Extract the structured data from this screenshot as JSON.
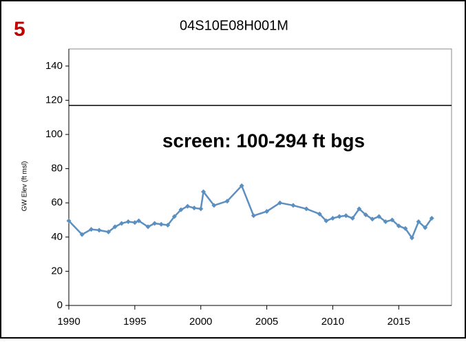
{
  "chart_data": {
    "type": "line",
    "panel_label": "5",
    "title": "04S10E08H001M",
    "ylabel": "GW Elev (ft msl)",
    "annotation": "screen: 100-294  ft bgs",
    "reference_line": 117,
    "x": [
      1990.0,
      1991.0,
      1991.7,
      1992.3,
      1993.0,
      1993.5,
      1994.0,
      1994.5,
      1995.0,
      1995.3,
      1996.0,
      1996.5,
      1997.0,
      1997.5,
      1998.0,
      1998.5,
      1999.0,
      1999.5,
      2000.0,
      2000.2,
      2001.0,
      2002.0,
      2003.1,
      2004.0,
      2005.0,
      2006.0,
      2007.0,
      2008.0,
      2009.0,
      2009.5,
      2010.0,
      2010.5,
      2011.0,
      2011.5,
      2012.0,
      2012.5,
      2013.0,
      2013.5,
      2014.0,
      2014.5,
      2015.0,
      2015.5,
      2016.0,
      2016.5,
      2017.0,
      2017.5
    ],
    "series": [
      {
        "name": "GW Elev",
        "color": "#5b8fc0",
        "values": [
          49.5,
          41.5,
          44.5,
          44,
          43,
          46,
          48,
          49,
          48.5,
          49.5,
          46,
          48,
          47.5,
          47,
          52,
          56,
          58,
          57,
          56.5,
          66.5,
          58.5,
          61,
          70,
          52.5,
          55,
          60,
          58.5,
          56.5,
          53.5,
          49.5,
          51,
          52,
          52.5,
          51,
          56.5,
          53,
          50.5,
          52,
          49,
          50,
          46.5,
          45,
          39.5,
          49,
          45.5,
          51
        ]
      }
    ],
    "xlim": [
      1990,
      2019
    ],
    "xticks": [
      1990,
      1995,
      2000,
      2005,
      2010,
      2015
    ],
    "ylim": [
      0,
      150
    ],
    "yticks": [
      0,
      20,
      40,
      60,
      80,
      100,
      120,
      140
    ]
  }
}
